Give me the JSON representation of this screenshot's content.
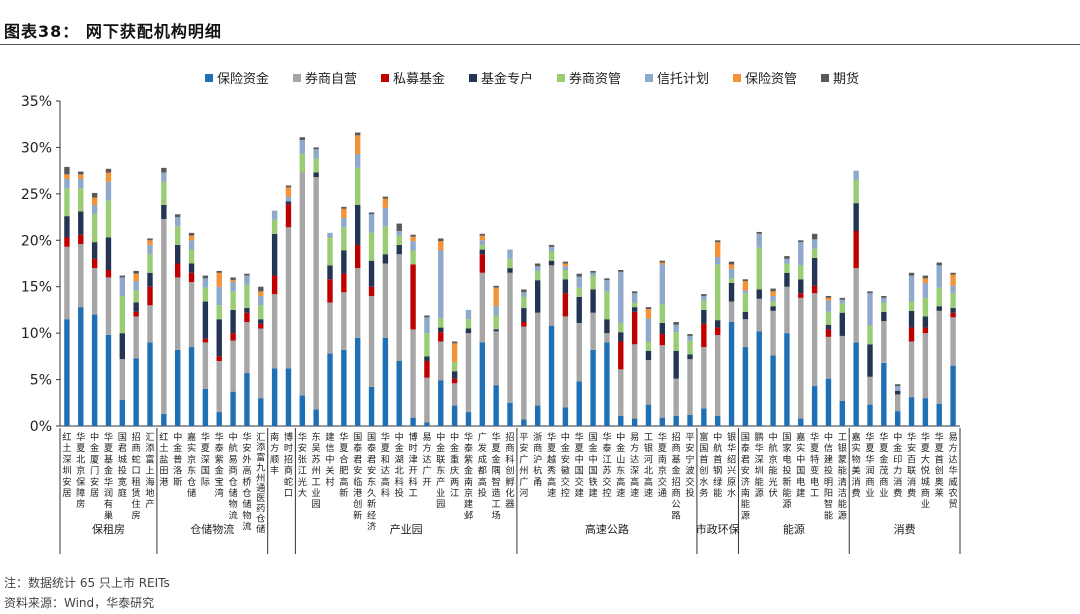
{
  "figure": {
    "title": "图表38：  网下获配机构明细",
    "note": "注：数据统计 65 只上市 REITs",
    "source": "资料来源：Wind，华泰研究"
  },
  "chart_data": {
    "type": "bar",
    "stacked": true,
    "title": "",
    "xlabel": "",
    "ylabel": "",
    "ylim": [
      0,
      0.35
    ],
    "y_ticks": [
      "0%",
      "5%",
      "10%",
      "15%",
      "20%",
      "25%",
      "30%",
      "35%"
    ],
    "grid": false,
    "legend_position": "top",
    "categories": [
      "红土深圳安居",
      "华夏北京保障房",
      "中金厦门安居",
      "华夏基金华润有巢",
      "国君城投宽庭",
      "招商蛇口租赁住房",
      "汇添富上海地产",
      "红土盐田港",
      "中金普洛斯",
      "嘉实京东仓储",
      "华夏深国际",
      "华泰紫金宝湾",
      "中航易商仓储物流",
      "华安外高桥仓储物流",
      "汇添富九州通医药仓储",
      "南方顺丰",
      "博时招商蛇口",
      "华安张江光大",
      "东吴苏州工业园",
      "建信中关村",
      "华夏合肥高新",
      "国泰君安临港创新",
      "国泰君安东久新经济",
      "华夏和达高科",
      "中金湖北科投",
      "博时津开科工",
      "易方达广开",
      "中金联东产业园",
      "中金重庆两江",
      "华泰紫金南京建邺",
      "广发成都高投",
      "华夏金隅智造工场",
      "招商科创孵化器",
      "平安广州广河",
      "浙商沪杭甬",
      "华夏越秀高速",
      "中金安徽交控",
      "华夏中国交建",
      "国金中国铁建",
      "华泰江苏交控",
      "中金山东高速",
      "易方达深高速",
      "工银河北高速",
      "华夏南京交通",
      "招商基金招商公路",
      "平安宁波交投",
      "富国首创水务",
      "中航首钢绿能",
      "银华绍兴原水",
      "国泰君安济南能源",
      "鹏华深圳能源",
      "中航京能光伏",
      "国家电投新能源",
      "嘉实中国电建",
      "华夏特变电工",
      "中信建投明阳智能",
      "工银蒙能清洁能源",
      "嘉实物美消费",
      "华夏华润商业",
      "华夏金茂商业",
      "中金印力消费",
      "华安百联消费",
      "华夏大悦城商业",
      "华夏首创奥莱",
      "易方达华威农贸"
    ],
    "groups": [
      {
        "name": "保租房",
        "count": 7
      },
      {
        "name": "仓储物流",
        "count": 8
      },
      {
        "name": "",
        "count": 2
      },
      {
        "name": "产业园",
        "count": 16
      },
      {
        "name": "高速公路",
        "count": 13
      },
      {
        "name": "市政环保",
        "count": 3
      },
      {
        "name": "能源",
        "count": 8
      },
      {
        "name": "消费",
        "count": 8
      }
    ],
    "series": [
      {
        "name": "保险资金",
        "color": "#1F6FB5",
        "values": [
          0.115,
          0.128,
          0.12,
          0.098,
          0.028,
          0.073,
          0.09,
          0.013,
          0.082,
          0.085,
          0.04,
          0.015,
          0.037,
          0.057,
          0.03,
          0.062,
          0.062,
          0.033,
          0.018,
          0.078,
          0.082,
          0.095,
          0.042,
          0.095,
          0.07,
          0.009,
          0.004,
          0.049,
          0.022,
          0.015,
          0.09,
          0.044,
          0.025,
          0.007,
          0.022,
          0.108,
          0.02,
          0.048,
          0.082,
          0.09,
          0.011,
          0.008,
          0.023,
          0.009,
          0.011,
          0.012,
          0.019,
          0.011,
          0.112,
          0.085,
          0.102,
          0.076,
          0.1,
          0.008,
          0.043,
          0.051,
          0.027,
          0.09,
          0.023,
          0.068,
          0.016,
          0.031,
          0.03,
          0.024,
          0.065
        ]
      },
      {
        "name": "券商自营",
        "color": "#A6A6A6",
        "values": [
          0.078,
          0.068,
          0.05,
          0.062,
          0.044,
          0.045,
          0.04,
          0.21,
          0.078,
          0.07,
          0.05,
          0.055,
          0.055,
          0.055,
          0.075,
          0.08,
          0.152,
          0.24,
          0.25,
          0.055,
          0.062,
          0.075,
          0.098,
          0.08,
          0.115,
          0.095,
          0.048,
          0.042,
          0.024,
          0.085,
          0.075,
          0.058,
          0.14,
          0.1,
          0.1,
          0.065,
          0.098,
          0.063,
          0.04,
          0.01,
          0.05,
          0.08,
          0.048,
          0.078,
          0.04,
          0.06,
          0.066,
          0.087,
          0.022,
          0.03,
          0.035,
          0.048,
          0.05,
          0.13,
          0.1,
          0.045,
          0.07,
          0.08,
          0.03,
          0.045,
          0.018,
          0.06,
          0.07,
          0.1,
          0.052
        ]
      },
      {
        "name": "私募基金",
        "color": "#C00000",
        "values": [
          0.01,
          0.01,
          0.01,
          0.008,
          0,
          0.005,
          0.02,
          0,
          0.015,
          0.01,
          0.004,
          0.005,
          0.008,
          0.01,
          0.005,
          0.02,
          0.025,
          0,
          0,
          0.025,
          0.02,
          0.025,
          0.01,
          0,
          0,
          0.07,
          0.018,
          0.01,
          0.005,
          0,
          0.02,
          0,
          0,
          0.005,
          0,
          0,
          0.025,
          0,
          0,
          0,
          0.03,
          0.035,
          0,
          0.012,
          0,
          0,
          0.025,
          0.008,
          0,
          0,
          0,
          0,
          0,
          0.005,
          0.008,
          0.008,
          0,
          0.04,
          0,
          0,
          0,
          0.015,
          0.006,
          0,
          0.005
        ]
      },
      {
        "name": "基金专户",
        "color": "#243452",
        "values": [
          0.023,
          0.025,
          0.018,
          0.035,
          0.028,
          0.01,
          0.015,
          0.015,
          0.02,
          0.01,
          0.04,
          0.04,
          0.025,
          0.005,
          0.005,
          0.045,
          0.003,
          0,
          0.005,
          0.015,
          0.025,
          0.043,
          0.028,
          0.01,
          0.01,
          0,
          0.005,
          0.005,
          0.008,
          0.005,
          0.005,
          0.002,
          0.005,
          0.015,
          0.035,
          0.005,
          0.015,
          0.028,
          0.025,
          0.015,
          0.01,
          0.005,
          0.01,
          0.012,
          0.03,
          0.005,
          0.015,
          0.008,
          0.02,
          0.008,
          0.01,
          0.005,
          0.015,
          0.015,
          0.03,
          0.005,
          0.025,
          0.03,
          0.035,
          0.01,
          0.004,
          0.018,
          0.012,
          0.005,
          0.005
        ]
      },
      {
        "name": "券商资管",
        "color": "#9ACD73",
        "values": [
          0.03,
          0.025,
          0.03,
          0.04,
          0.04,
          0.013,
          0.02,
          0.025,
          0.02,
          0.015,
          0.015,
          0.015,
          0.02,
          0.025,
          0.015,
          0.015,
          0,
          0.02,
          0.015,
          0.03,
          0.025,
          0.04,
          0.03,
          0.03,
          0.01,
          0.015,
          0.025,
          0.01,
          0.01,
          0.01,
          0.005,
          0.015,
          0.01,
          0.012,
          0.01,
          0.01,
          0.01,
          0.01,
          0.015,
          0.03,
          0.01,
          0.005,
          0.01,
          0.02,
          0.02,
          0.015,
          0.01,
          0.06,
          0.005,
          0.02,
          0.045,
          0.005,
          0.01,
          0.015,
          0.01,
          0.014,
          0.01,
          0.025,
          0.02,
          0.01,
          0,
          0.01,
          0.02,
          0.02,
          0.016
        ]
      },
      {
        "name": "信托计划",
        "color": "#8EA9CC",
        "values": [
          0.01,
          0.01,
          0.01,
          0.02,
          0.02,
          0.01,
          0.01,
          0.01,
          0.01,
          0.01,
          0.01,
          0.02,
          0.01,
          0.01,
          0.01,
          0.01,
          0.005,
          0.015,
          0.01,
          0.005,
          0.01,
          0.015,
          0.02,
          0.02,
          0.005,
          0.01,
          0.017,
          0.073,
          0,
          0.01,
          0.005,
          0.01,
          0.01,
          0.005,
          0.005,
          0.005,
          0.004,
          0.012,
          0.003,
          0.012,
          0.055,
          0.01,
          0.025,
          0.043,
          0.008,
          0.005,
          0.005,
          0.008,
          0.01,
          0.003,
          0.015,
          0.006,
          0.005,
          0.025,
          0.01,
          0.012,
          0.004,
          0.01,
          0.035,
          0.005,
          0.005,
          0.028,
          0.016,
          0.024,
          0.008
        ]
      },
      {
        "name": "保险资管",
        "color": "#F4923A",
        "values": [
          0.005,
          0.005,
          0.008,
          0.01,
          0,
          0.008,
          0.005,
          0,
          0,
          0.005,
          0,
          0.015,
          0.002,
          0,
          0.005,
          0,
          0.01,
          0,
          0,
          0,
          0.01,
          0.02,
          0,
          0.01,
          0,
          0.005,
          0,
          0.01,
          0.02,
          0,
          0.005,
          0.02,
          0,
          0,
          0,
          0,
          0.003,
          0,
          0,
          0,
          0,
          0,
          0.01,
          0.002,
          0,
          0,
          0,
          0.016,
          0.005,
          0.01,
          0,
          0.005,
          0,
          0,
          0,
          0.003,
          0,
          0,
          0,
          0,
          0,
          0,
          0.005,
          0,
          0.012
        ]
      },
      {
        "name": "期货",
        "color": "#595959",
        "values": [
          0.008,
          0.003,
          0.005,
          0.004,
          0.002,
          0.003,
          0.002,
          0.005,
          0.003,
          0.003,
          0.003,
          0.002,
          0.003,
          0.002,
          0.005,
          0,
          0.002,
          0.003,
          0.002,
          0,
          0.002,
          0.003,
          0.002,
          0.002,
          0.008,
          0.002,
          0.002,
          0.003,
          0.002,
          0,
          0.002,
          0.002,
          0,
          0.003,
          0.003,
          0.002,
          0.002,
          0.003,
          0.002,
          0.002,
          0.002,
          0.002,
          0.002,
          0.002,
          0.003,
          0.002,
          0.002,
          0.002,
          0.003,
          0.002,
          0.002,
          0.003,
          0.003,
          0.002,
          0.006,
          0.002,
          0.002,
          0,
          0.002,
          0.002,
          0.002,
          0.003,
          0.003,
          0.003,
          0.002
        ]
      }
    ]
  }
}
